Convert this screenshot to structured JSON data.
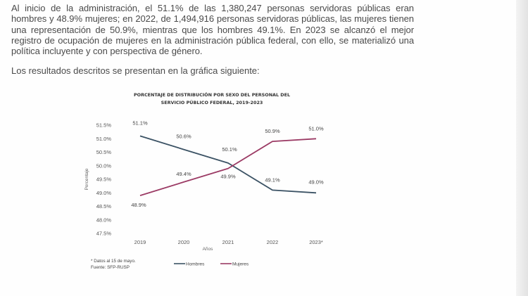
{
  "text": {
    "intro": "Al inicio de la administración, el 51.1% de las 1,380,247 personas servidoras públicas eran hombres y 48.9% mujeres; en 2022, de 1,494,916 personas servidoras públicas, las mujeres tienen una representación de 50.9%, mientras que los hombres 49.1%. En 2023 se alcanzó el mejor registro de ocupación de mujeres en la administración pública federal, con ello, se materializó una política incluyente y con perspectiva de género.",
    "lead": "Los resultados descritos se presentan en la gráfica siguiente:"
  },
  "chart_data": {
    "type": "line",
    "title_line1": "PORCENTAJE DE DISTRIBUCIÓN POR SEXO DEL PERSONAL DEL",
    "title_line2": "SERVICIO PÚBLICO FEDERAL, 2019-2023",
    "categories": [
      "2019",
      "2020",
      "2021",
      "2022",
      "2023*"
    ],
    "xlabel": "Años",
    "ylabel": "Porcentaje",
    "ylim": [
      47.5,
      51.5
    ],
    "yticks": [
      47.5,
      48.0,
      48.5,
      49.0,
      49.5,
      50.0,
      50.5,
      51.0,
      51.5
    ],
    "ytick_labels": [
      "47.5%",
      "48.0%",
      "48.5%",
      "49.0%",
      "49.5%",
      "50.0%",
      "50.5%",
      "51.0%",
      "51.5%"
    ],
    "grid": false,
    "legend_position": "bottom",
    "series": [
      {
        "name": "Hombres",
        "color": "#3b5264",
        "values": [
          51.1,
          50.6,
          50.1,
          49.1,
          49.0
        ],
        "labels": [
          "51.1%",
          "50.6%",
          "50.1%",
          "49.1%",
          "49.0%"
        ]
      },
      {
        "name": "Mujeres",
        "color": "#9b3a64",
        "values": [
          48.9,
          49.4,
          49.9,
          50.9,
          51.0
        ],
        "labels": [
          "48.9%",
          "49.4%",
          "49.9%",
          "50.9%",
          "51.0%"
        ]
      }
    ],
    "footnote_line1": "* Datos al 15 de mayo.",
    "footnote_line2": "Fuente: SFP-RUSP"
  }
}
